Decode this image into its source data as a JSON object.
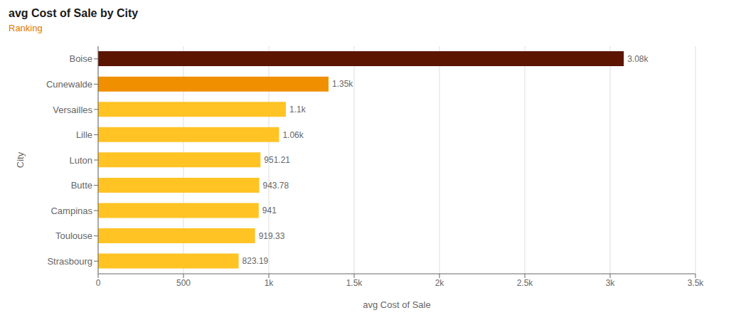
{
  "chart_data": {
    "type": "bar",
    "orientation": "horizontal",
    "title": "avg Cost of Sale by City",
    "subtitle": "Ranking",
    "xlabel": "avg Cost of Sale",
    "ylabel": "City",
    "categories": [
      "Strasbourg",
      "Toulouse",
      "Campinas",
      "Butte",
      "Luton",
      "Lille",
      "Versailles",
      "Cunewalde",
      "Boise"
    ],
    "values": [
      823.19,
      919.33,
      941,
      943.78,
      951.21,
      1060,
      1100,
      1350,
      3080
    ],
    "value_labels": [
      "823.19",
      "919.33",
      "941",
      "943.78",
      "951.21",
      "1.06k",
      "1.1k",
      "1.35k",
      "3.08k"
    ],
    "data_labels": true,
    "colors": [
      "#FFC324",
      "#FFC324",
      "#FFC324",
      "#FFC324",
      "#FFC324",
      "#FFC324",
      "#FFC324",
      "#F09000",
      "#5C1500"
    ],
    "xlim": [
      0,
      3500
    ],
    "xticks": [
      0,
      500,
      {
        "value": 1000,
        "label": "1k"
      },
      {
        "value": 1500,
        "label": "1.5k"
      },
      {
        "value": 2000,
        "label": "2k"
      },
      {
        "value": 2500,
        "label": "2.5k"
      },
      {
        "value": 3000,
        "label": "3k"
      },
      {
        "value": 3500,
        "label": "3.5k"
      }
    ],
    "grid": true
  }
}
